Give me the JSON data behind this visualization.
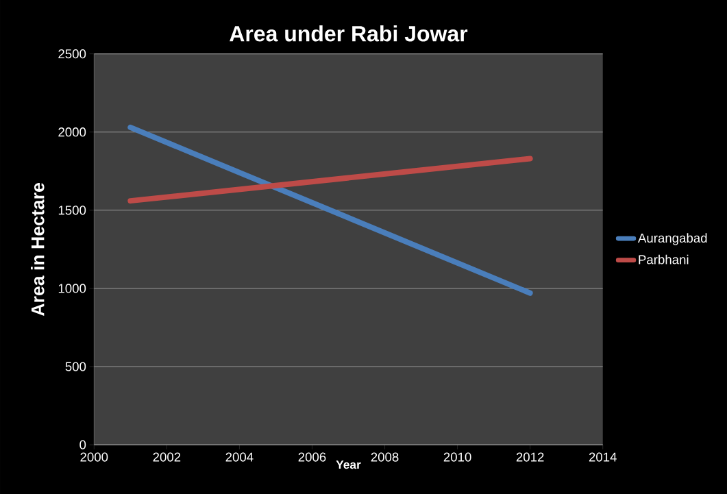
{
  "chart_data": {
    "type": "line",
    "title": "Area under Rabi Jowar",
    "xlabel": "Year",
    "ylabel": "Area in Hectare",
    "x": [
      2001,
      2012
    ],
    "series": [
      {
        "name": "Aurangabad",
        "color": "#4a7ebb",
        "values": [
          2030,
          970
        ]
      },
      {
        "name": "Parbhani",
        "color": "#be4b48",
        "values": [
          1560,
          1830
        ]
      }
    ],
    "xlim": [
      2000,
      2014
    ],
    "xticks": [
      2000,
      2002,
      2004,
      2006,
      2008,
      2010,
      2012,
      2014
    ],
    "ylim": [
      0,
      2500
    ],
    "yticks": [
      0,
      500,
      1000,
      1500,
      2000,
      2500
    ],
    "grid": "y",
    "legend": "right",
    "marker": "none",
    "line_style": "solid"
  }
}
